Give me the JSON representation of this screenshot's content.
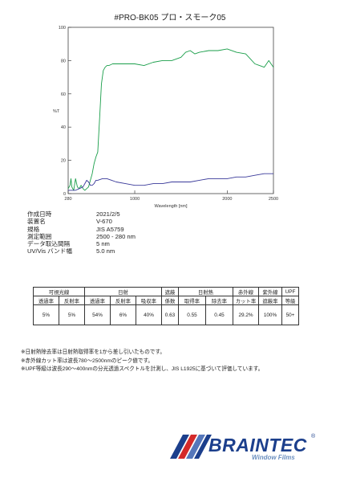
{
  "title": "#PRO-BK05  プロ・スモーク05",
  "chart_data": {
    "type": "line",
    "xlabel": "Wavelength [nm]",
    "ylabel": "%T",
    "xlim": [
      280,
      2500
    ],
    "ylim": [
      0,
      100
    ],
    "x_ticks": [
      280,
      1000,
      2000,
      2500
    ],
    "y_ticks": [
      0,
      20,
      40,
      60,
      80,
      100
    ],
    "grid": false,
    "series": [
      {
        "color": "#1a9e4a",
        "x": [
          280,
          300,
          310,
          320,
          340,
          360,
          380,
          400,
          420,
          440,
          460,
          480,
          500,
          520,
          540,
          560,
          580,
          600,
          620,
          640,
          660,
          680,
          700,
          720,
          760,
          800,
          900,
          1000,
          1100,
          1200,
          1300,
          1400,
          1500,
          1550,
          1600,
          1650,
          1700,
          1800,
          1900,
          2000,
          2100,
          2200,
          2250,
          2300,
          2350,
          2400,
          2450,
          2500
        ],
        "y": [
          3,
          5,
          9,
          4,
          2,
          9,
          4,
          3,
          5,
          3,
          2,
          3,
          4,
          8,
          12,
          18,
          22,
          25,
          45,
          66,
          74,
          76,
          77,
          77,
          78,
          78,
          78,
          78,
          77,
          79,
          80,
          80,
          82,
          85,
          86,
          84,
          85,
          86,
          86,
          87,
          85,
          84,
          81,
          78,
          77,
          76,
          80,
          76
        ]
      },
      {
        "color": "#3a3a9a",
        "x": [
          280,
          320,
          360,
          400,
          440,
          460,
          480,
          500,
          520,
          540,
          560,
          580,
          600,
          650,
          700,
          750,
          800,
          900,
          1000,
          1100,
          1200,
          1300,
          1400,
          1500,
          1600,
          1700,
          1800,
          1900,
          2000,
          2100,
          2200,
          2300,
          2400,
          2500
        ],
        "y": [
          2,
          2,
          2,
          3,
          4,
          6,
          8,
          7,
          5,
          5,
          6,
          8,
          8,
          9,
          9,
          8,
          7,
          6,
          5,
          5,
          6,
          6,
          7,
          7,
          7,
          8,
          9,
          9,
          9,
          10,
          10,
          11,
          12,
          12
        ]
      }
    ]
  },
  "meta": [
    {
      "label": "作成日時",
      "value": "2021/2/5"
    },
    {
      "label": "装置名",
      "value": "V-670"
    },
    {
      "label": "規格",
      "value": "JIS A5759"
    },
    {
      "label": "測定範囲",
      "value": "2500 - 280 nm"
    },
    {
      "label": "データ取込間隔",
      "value": "5 nm"
    },
    {
      "label": "UV/Vis バンド幅",
      "value": "5.0 nm"
    }
  ],
  "table": {
    "group_headers": [
      {
        "label": "可視光線",
        "span": 2
      },
      {
        "label": "日射",
        "span": 3
      },
      {
        "label": "遮蔽",
        "span": 1
      },
      {
        "label": "日射熱",
        "span": 2
      },
      {
        "label": "赤外線",
        "span": 1
      },
      {
        "label": "紫外線",
        "span": 1
      },
      {
        "label": "UPF",
        "span": 1
      }
    ],
    "sub_headers": [
      "透過率",
      "反射率",
      "透過率",
      "反射率",
      "吸収率",
      "係数",
      "取得率",
      "除去率",
      "カット率",
      "遮蔽率",
      "等級"
    ],
    "values": [
      "5%",
      "5%",
      "54%",
      "6%",
      "40%",
      "0.63",
      "0.55",
      "0.45",
      "29.2%",
      "100%",
      "50+"
    ]
  },
  "notes": [
    "※日射熱除去率は日射熱取得率を1から差し引いたものです。",
    "※赤外線カット率は波長780～2500nmのピーク値です。",
    "※UPF等級は波長290～400nmの分光透過スペクトルを計測し、JIS L1925に基づいて評価しています。"
  ],
  "brand": {
    "name": "BRAINTEC",
    "registered": "®",
    "tagline": "Window Films",
    "colors": {
      "primary": "#1c3f8c",
      "accent_red": "#d42a2a",
      "accent_blue": "#5577bb"
    }
  }
}
